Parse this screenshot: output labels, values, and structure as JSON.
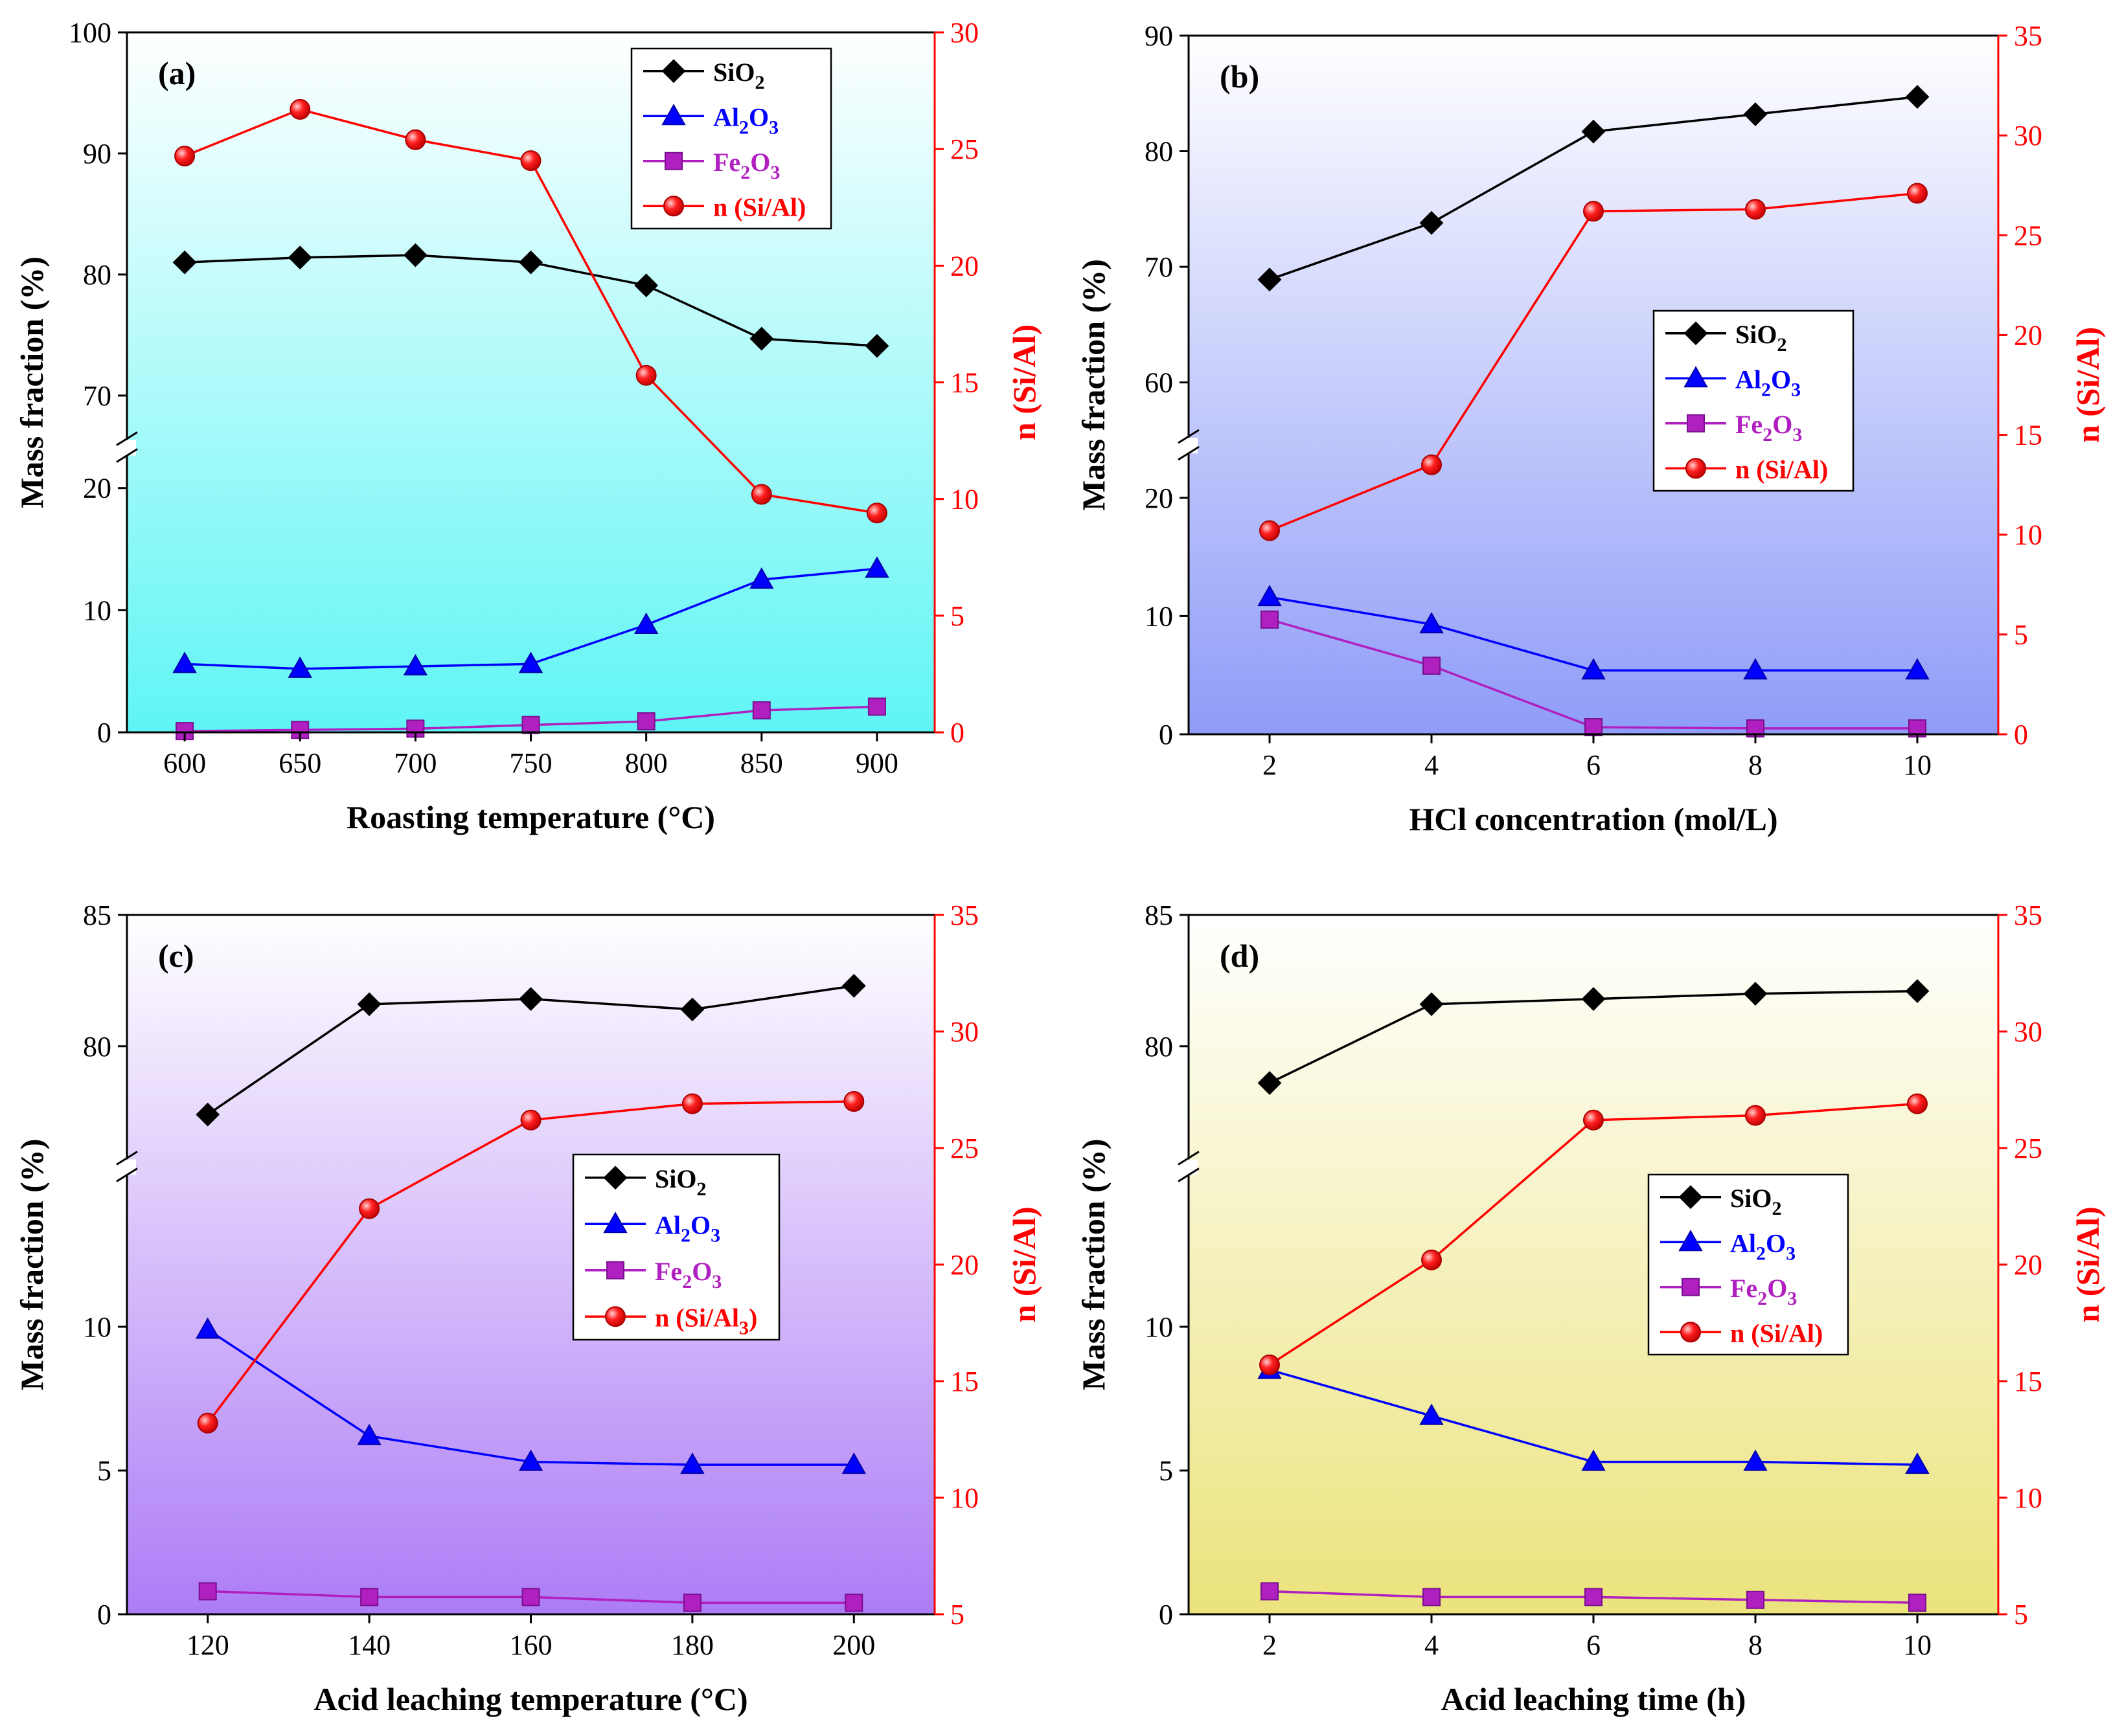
{
  "figure": {
    "colors": {
      "sio2": "#000000",
      "al2o3": "#0000ff",
      "fe2o3": "#b020c0",
      "ratio": "#ff0000"
    }
  },
  "chart_data": [
    {
      "type": "line",
      "panel_label": "(a)",
      "xlabel": "Roasting temperature (°C)",
      "ylabel": "Mass fraction (%)",
      "y2label": "n (Si/Al)",
      "x": [
        600,
        650,
        700,
        750,
        800,
        850,
        900
      ],
      "xlim": [
        575,
        925
      ],
      "xticks": [
        600,
        650,
        700,
        750,
        800,
        850,
        900
      ],
      "ylim_lower": [
        0,
        22
      ],
      "ylim_upper": [
        67,
        100
      ],
      "yticks_lower": [
        0,
        10,
        20
      ],
      "yticks_upper": [
        70,
        80,
        90,
        100
      ],
      "y2lim": [
        0,
        30
      ],
      "y2ticks": [
        0,
        5,
        10,
        15,
        20,
        25,
        30
      ],
      "legend_position": "top-right",
      "background": [
        "#ffffff",
        "#5ff5f5"
      ],
      "series": [
        {
          "name": "SiO2",
          "label_main": "SiO",
          "label_sub": "2",
          "label_tail": "",
          "marker": "diamond",
          "axis": "left",
          "values": [
            81.0,
            81.4,
            81.6,
            81.0,
            79.1,
            74.7,
            74.1
          ]
        },
        {
          "name": "Al2O3",
          "label_main": "Al",
          "label_sub": "2",
          "label_tail": "O3",
          "marker": "triangle",
          "axis": "left",
          "values": [
            5.6,
            5.2,
            5.4,
            5.6,
            8.8,
            12.5,
            13.4
          ]
        },
        {
          "name": "Fe2O3",
          "label_main": "Fe",
          "label_sub": "2",
          "label_tail": "O3",
          "marker": "square",
          "axis": "left",
          "values": [
            0.1,
            0.2,
            0.3,
            0.6,
            0.9,
            1.8,
            2.1
          ]
        },
        {
          "name": "n (Si/Al)",
          "label_main": "n (Si/Al)",
          "label_sub": "",
          "label_tail": "",
          "marker": "circle",
          "axis": "right",
          "values": [
            24.7,
            26.7,
            25.4,
            24.5,
            15.3,
            10.2,
            9.4
          ]
        }
      ]
    },
    {
      "type": "line",
      "panel_label": "(b)",
      "xlabel": "HCl concentration (mol/L)",
      "ylabel": "Mass fraction (%)",
      "y2label": "n (Si/Al)",
      "x": [
        2,
        4,
        6,
        8,
        10
      ],
      "xlim": [
        1,
        11
      ],
      "xticks": [
        2,
        4,
        6,
        8,
        10
      ],
      "ylim_lower": [
        0,
        23
      ],
      "ylim_upper": [
        56,
        90
      ],
      "yticks_lower": [
        0,
        10,
        20
      ],
      "yticks_upper": [
        60,
        70,
        80,
        90
      ],
      "y2lim": [
        0,
        35
      ],
      "y2ticks": [
        0,
        5,
        10,
        15,
        20,
        25,
        30,
        35
      ],
      "legend_position": "center-right",
      "background": [
        "#ffffff",
        "#8f9cf8"
      ],
      "series": [
        {
          "name": "SiO2",
          "label_main": "SiO",
          "label_sub": "2",
          "label_tail": "",
          "marker": "diamond",
          "axis": "left",
          "values": [
            68.9,
            73.8,
            81.7,
            83.2,
            84.7
          ]
        },
        {
          "name": "Al2O3",
          "label_main": "Al",
          "label_sub": "2",
          "label_tail": "O3",
          "marker": "triangle",
          "axis": "left",
          "values": [
            11.6,
            9.3,
            5.4,
            5.4,
            5.4
          ]
        },
        {
          "name": "Fe2O3",
          "label_main": "Fe",
          "label_sub": "2",
          "label_tail": "O3",
          "marker": "square",
          "axis": "left",
          "values": [
            9.7,
            5.8,
            0.6,
            0.5,
            0.5
          ]
        },
        {
          "name": "n (Si/Al)",
          "label_main": "n (Si/Al)",
          "label_sub": "",
          "label_tail": "",
          "marker": "circle",
          "axis": "right",
          "values": [
            10.2,
            13.5,
            26.2,
            26.3,
            27.1
          ]
        }
      ]
    },
    {
      "type": "line",
      "panel_label": "(c)",
      "xlabel": "Acid leaching temperature (°C)",
      "ylabel": "Mass fraction (%)",
      "y2label": "n (Si/Al)",
      "x": [
        120,
        140,
        160,
        180,
        200
      ],
      "xlim": [
        110,
        210
      ],
      "xticks": [
        120,
        140,
        160,
        180,
        200
      ],
      "ylim_lower": [
        0,
        15
      ],
      "ylim_upper": [
        76,
        85
      ],
      "yticks_lower": [
        0,
        5,
        10
      ],
      "yticks_upper": [
        80,
        85
      ],
      "y2lim": [
        5,
        35
      ],
      "y2ticks": [
        5,
        10,
        15,
        20,
        25,
        30,
        35
      ],
      "legend_position": "center-right",
      "background": [
        "#ffffff",
        "#ad7cf6"
      ],
      "series": [
        {
          "name": "SiO2",
          "label_main": "SiO",
          "label_sub": "2",
          "label_tail": "",
          "marker": "diamond",
          "axis": "left",
          "values": [
            77.4,
            81.6,
            81.8,
            81.4,
            82.3
          ]
        },
        {
          "name": "Al2O3",
          "label_main": "Al",
          "label_sub": "2",
          "label_tail": "O3",
          "marker": "triangle",
          "axis": "left",
          "values": [
            9.9,
            6.2,
            5.3,
            5.2,
            5.2
          ]
        },
        {
          "name": "Fe2O3",
          "label_main": "Fe",
          "label_sub": "2",
          "label_tail": "O3",
          "marker": "square",
          "axis": "left",
          "values": [
            0.8,
            0.6,
            0.6,
            0.4,
            0.4
          ]
        },
        {
          "name": "n (Si/Al3)",
          "label_main": "n (Si/Al",
          "label_sub": "3",
          "label_tail": ")",
          "marker": "circle",
          "axis": "right",
          "values": [
            13.2,
            22.4,
            26.2,
            26.9,
            27.0
          ]
        }
      ]
    },
    {
      "type": "line",
      "panel_label": "(d)",
      "xlabel": "Acid leaching time (h)",
      "ylabel": "Mass fraction (%)",
      "y2label": "n (Si/Al)",
      "x": [
        2,
        4,
        6,
        8,
        10
      ],
      "xlim": [
        1,
        11
      ],
      "xticks": [
        2,
        4,
        6,
        8,
        10
      ],
      "ylim_lower": [
        0,
        15
      ],
      "ylim_upper": [
        76,
        85
      ],
      "yticks_lower": [
        0,
        5,
        10
      ],
      "yticks_upper": [
        80,
        85
      ],
      "y2lim": [
        5,
        35
      ],
      "y2ticks": [
        5,
        10,
        15,
        20,
        25,
        30,
        35
      ],
      "legend_position": "center-right",
      "background": [
        "#ffffff",
        "#ebe37c"
      ],
      "series": [
        {
          "name": "SiO2",
          "label_main": "SiO",
          "label_sub": "2",
          "label_tail": "",
          "marker": "diamond",
          "axis": "left",
          "values": [
            78.6,
            81.6,
            81.8,
            82.0,
            82.1
          ]
        },
        {
          "name": "Al2O3",
          "label_main": "Al",
          "label_sub": "2",
          "label_tail": "O3",
          "marker": "triangle",
          "axis": "left",
          "values": [
            8.5,
            6.9,
            5.3,
            5.3,
            5.2
          ]
        },
        {
          "name": "Fe2O3",
          "label_main": "Fe",
          "label_sub": "2",
          "label_tail": "O3",
          "marker": "square",
          "axis": "left",
          "values": [
            0.8,
            0.6,
            0.6,
            0.5,
            0.4
          ]
        },
        {
          "name": "n (Si/Al)",
          "label_main": "n (Si/Al)",
          "label_sub": "",
          "label_tail": "",
          "marker": "circle",
          "axis": "right",
          "values": [
            15.7,
            20.2,
            26.2,
            26.4,
            26.9
          ]
        }
      ]
    }
  ]
}
